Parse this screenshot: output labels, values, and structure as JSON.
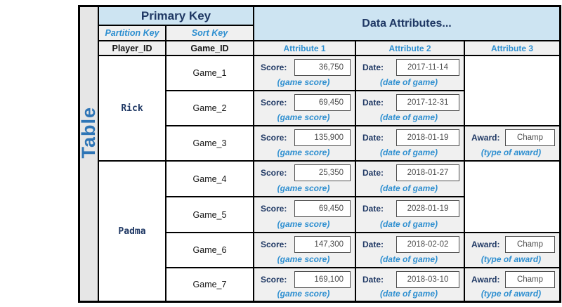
{
  "table_label": "Table",
  "header": {
    "primary_key": "Primary Key",
    "data_attributes": "Data Attributes...",
    "partition_key": "Partition Key",
    "sort_key": "Sort Key",
    "player_id": "Player_ID",
    "game_id": "Game_ID",
    "attribute_1": "Attribute 1",
    "attribute_2": "Attribute 2",
    "attribute_3": "Attribute 3"
  },
  "field_labels": {
    "score": "Score:",
    "date": "Date:",
    "award": "Award:"
  },
  "captions": {
    "score": "(game score)",
    "date": "(date of game)",
    "award": "(type of award)"
  },
  "players": [
    {
      "name": "Rick",
      "game_count": 3
    },
    {
      "name": "Padma",
      "game_count": 4
    }
  ],
  "rows": [
    {
      "game": "Game_1",
      "score": "36,750",
      "date": "2017-11-14",
      "award": ""
    },
    {
      "game": "Game_2",
      "score": "69,450",
      "date": "2017-12-31",
      "award": ""
    },
    {
      "game": "Game_3",
      "score": "135,900",
      "date": "2018-01-19",
      "award": "Champ"
    },
    {
      "game": "Game_4",
      "score": "25,350",
      "date": "2018-01-27",
      "award": ""
    },
    {
      "game": "Game_5",
      "score": "69,450",
      "date": "2028-01-19",
      "award": ""
    },
    {
      "game": "Game_6",
      "score": "147,300",
      "date": "2018-02-02",
      "award": "Champ"
    },
    {
      "game": "Game_7",
      "score": "169,100",
      "date": "2018-03-10",
      "award": "Champ"
    }
  ],
  "colors": {
    "header_blue_bg": "#CDE4F2",
    "cell_gray_bg": "#F0F0F0",
    "table_column_bg": "#E6E6E6",
    "navy_text": "#1F3864",
    "accent_blue": "#2E8FD0",
    "table_label_blue": "#2E75B6",
    "border": "#000000"
  }
}
